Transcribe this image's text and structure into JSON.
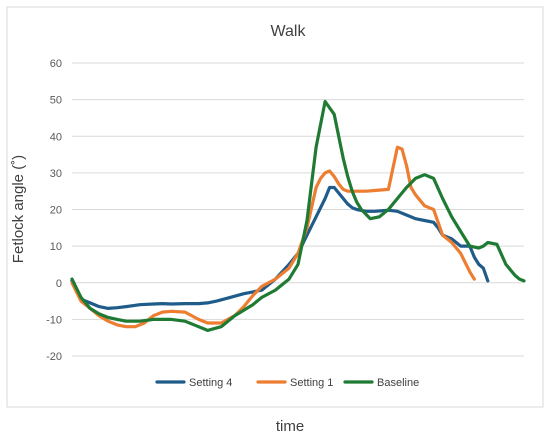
{
  "chart_data": {
    "type": "line",
    "title": "Walk",
    "xlabel": "time",
    "ylabel": "Fetlock angle (˚)",
    "ylim": [
      -20,
      60
    ],
    "yticks": [
      -20,
      -10,
      0,
      10,
      20,
      30,
      40,
      50,
      60
    ],
    "xlim": [
      0,
      100
    ],
    "legend_position": "bottom",
    "grid": true,
    "series": [
      {
        "name": "Setting 4",
        "color": "#1F5C8A",
        "x": [
          0,
          2,
          4,
          6,
          8,
          10,
          12,
          15,
          18,
          20,
          22,
          25,
          28,
          30,
          32,
          35,
          38,
          40,
          42,
          45,
          48,
          50,
          52,
          54,
          56,
          57,
          58,
          59,
          60,
          61,
          62,
          63,
          65,
          67,
          70,
          72,
          74,
          76,
          78,
          80,
          81,
          82,
          84,
          85,
          86,
          88,
          89,
          90,
          91,
          92
        ],
        "y": [
          0.5,
          -4.5,
          -5.5,
          -6.5,
          -7,
          -6.8,
          -6.5,
          -6,
          -5.8,
          -5.7,
          -5.8,
          -5.7,
          -5.7,
          -5.5,
          -5,
          -4,
          -3,
          -2.5,
          -2,
          1,
          5,
          8,
          13,
          18,
          23,
          26,
          26,
          24.5,
          23,
          21.5,
          20.5,
          20,
          19.5,
          19.5,
          19.8,
          19.5,
          18.5,
          17.5,
          17,
          16.5,
          15,
          13,
          12,
          11,
          10,
          10,
          7,
          5,
          4,
          0.5
        ]
      },
      {
        "name": "Setting 1",
        "color": "#ED7D31",
        "x": [
          0,
          2,
          4,
          6,
          8,
          10,
          12,
          14,
          16,
          18,
          20,
          22,
          25,
          28,
          30,
          33,
          36,
          38,
          40,
          42,
          45,
          48,
          50,
          52,
          54,
          55,
          56,
          57,
          58,
          59,
          60,
          61,
          62,
          63,
          65,
          67,
          70,
          72,
          73,
          74,
          75,
          76,
          78,
          80,
          82,
          84,
          86,
          88,
          89
        ],
        "y": [
          0,
          -5,
          -7,
          -9,
          -10.5,
          -11.5,
          -12,
          -12,
          -11,
          -9,
          -8,
          -7.8,
          -8,
          -10,
          -11,
          -11,
          -9,
          -6.5,
          -3.5,
          -1,
          1,
          4,
          8,
          15,
          26,
          28.5,
          30,
          30.5,
          29,
          27,
          25.5,
          25,
          25,
          25,
          25,
          25.2,
          25.5,
          37,
          36.5,
          32,
          26,
          24,
          21,
          20,
          13,
          11,
          8,
          3,
          1
        ]
      },
      {
        "name": "Baseline",
        "color": "#1F7A33",
        "x": [
          0,
          2,
          4,
          6,
          8,
          10,
          12,
          15,
          18,
          20,
          22,
          25,
          28,
          30,
          33,
          36,
          40,
          42,
          45,
          48,
          50,
          52,
          54,
          56,
          58,
          59,
          60,
          61,
          62,
          63,
          64,
          66,
          68,
          70,
          72,
          74,
          76,
          78,
          80,
          82,
          84,
          86,
          88,
          90,
          91,
          92,
          94,
          96,
          98,
          99,
          100
        ],
        "y": [
          1,
          -4,
          -7,
          -8.5,
          -9.5,
          -10,
          -10.5,
          -10.5,
          -10,
          -10,
          -10,
          -10.5,
          -12,
          -13,
          -12,
          -9,
          -6,
          -4,
          -2,
          1,
          5,
          17,
          37,
          49.5,
          46,
          40,
          34,
          29,
          25,
          22,
          20,
          17.5,
          18,
          20,
          23,
          26,
          28.5,
          29.5,
          28.5,
          23,
          18,
          14,
          10,
          9.5,
          10,
          11,
          10.5,
          5,
          2,
          1,
          0.5
        ]
      }
    ]
  }
}
